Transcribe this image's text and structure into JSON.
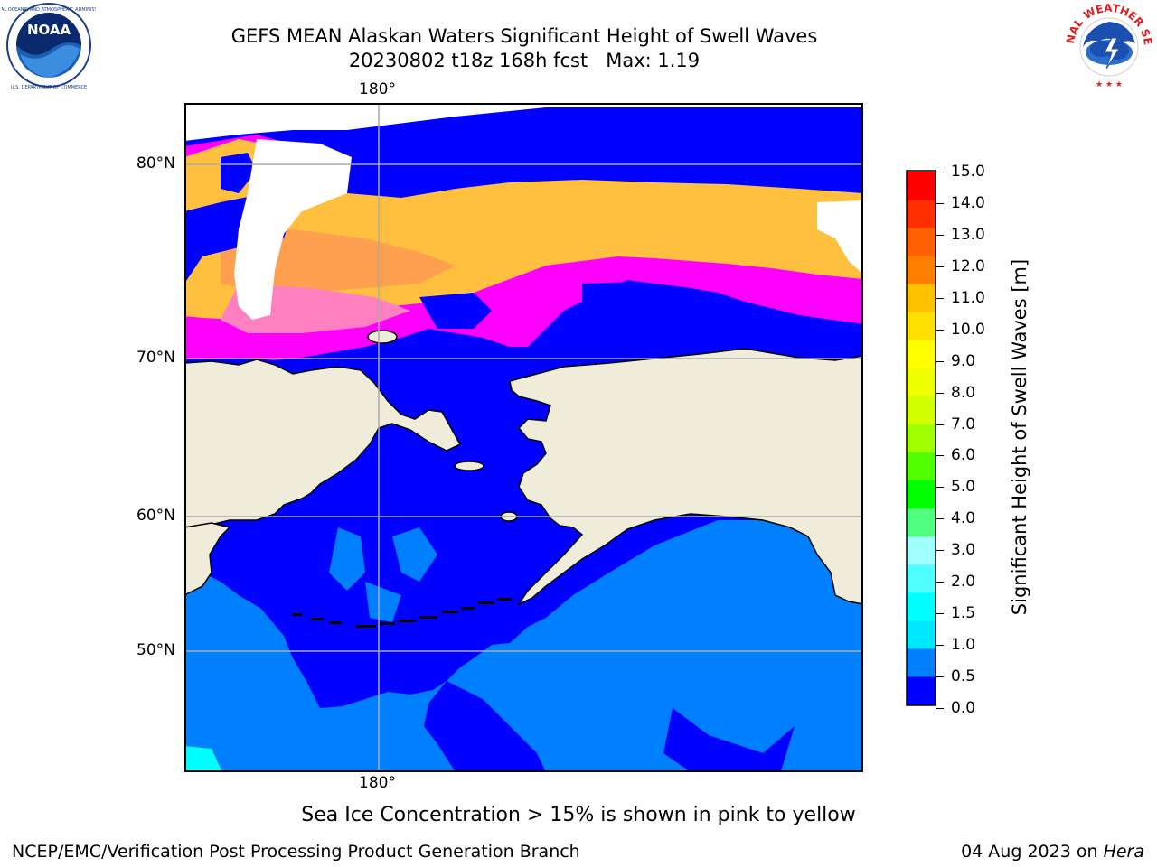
{
  "title_line1": "GEFS MEAN Alaskan Waters Significant Height of Swell Waves",
  "title_line2": "20230802 t18z 168h fcst   Max: 1.19",
  "map": {
    "lon_top": "180°",
    "lon_bottom": "180°",
    "lat_labels": [
      "80°N",
      "70°N",
      "60°N",
      "50°N"
    ],
    "colors": {
      "land": "#efecd9",
      "swell_0_05": "#0000ff",
      "swell_05_10": "#0080ff",
      "swell_10_15": "#00ffff",
      "ice_low": "#ff00ff",
      "ice_high": "#ffc040"
    }
  },
  "colorbar": {
    "label": "Significant Height of Swell Waves [m]",
    "ticks": [
      "15.0",
      "14.0",
      "13.0",
      "12.0",
      "11.0",
      "10.0",
      "9.0",
      "8.0",
      "7.0",
      "6.0",
      "5.0",
      "4.0",
      "3.0",
      "2.0",
      "1.5",
      "1.0",
      "0.5",
      "0.0"
    ],
    "bins_bottom_to_top": [
      "#0000ff",
      "#0080ff",
      "#00e8ff",
      "#00ffff",
      "#50ffff",
      "#a0ffff",
      "#50ff80",
      "#00ff00",
      "#50ff00",
      "#a0ff00",
      "#d0ff00",
      "#f0ff00",
      "#ffff00",
      "#ffe000",
      "#ffc000",
      "#ff8000",
      "#ff6000",
      "#ff3000",
      "#ff0000"
    ]
  },
  "note": "Sea Ice Concentration > 15% is shown in pink to yellow",
  "footer_left": "NCEP/EMC/Verification Post Processing Product Generation Branch",
  "footer_right_date": "04 Aug 2023 on ",
  "footer_right_host": "Hera"
}
